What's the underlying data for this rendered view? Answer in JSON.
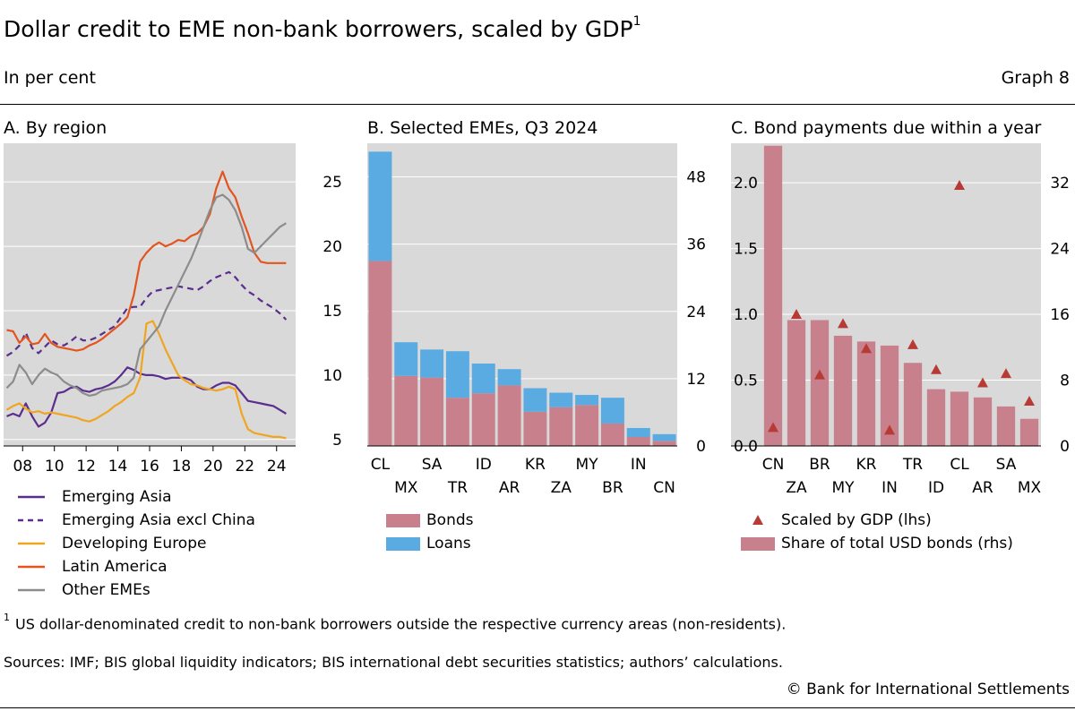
{
  "header": {
    "title": "Dollar credit to EME non-bank borrowers, scaled by GDP",
    "title_sup": "1",
    "subtitle": "In per cent",
    "graph_number": "Graph 8"
  },
  "chart_data": [
    {
      "type": "line",
      "title": "A. By region",
      "x_tick_labels": [
        "08",
        "10",
        "12",
        "14",
        "16",
        "18",
        "20",
        "22",
        "24"
      ],
      "x_tick_values": [
        2008,
        2010,
        2012,
        2014,
        2016,
        2018,
        2020,
        2022,
        2024
      ],
      "xlim": [
        2006.8,
        2025.2
      ],
      "ylim": [
        4.5,
        28
      ],
      "y_ticks": [
        5,
        10,
        15,
        20,
        25
      ],
      "y_axis_side": "right",
      "grid": true,
      "legend_position": "below",
      "series": [
        {
          "name": "Emerging Asia",
          "color": "#5b2d8e",
          "dash": false,
          "x": [
            2007.0,
            2007.4,
            2007.8,
            2008.2,
            2008.6,
            2009.0,
            2009.4,
            2009.8,
            2010.2,
            2010.6,
            2011.0,
            2011.4,
            2011.8,
            2012.2,
            2012.6,
            2013.0,
            2013.4,
            2013.8,
            2014.2,
            2014.6,
            2015.0,
            2015.4,
            2015.8,
            2016.2,
            2016.6,
            2017.0,
            2017.4,
            2017.8,
            2018.2,
            2018.6,
            2019.0,
            2019.4,
            2019.8,
            2020.2,
            2020.6,
            2021.0,
            2021.4,
            2021.8,
            2022.2,
            2022.6,
            2023.0,
            2023.4,
            2023.8,
            2024.2,
            2024.6
          ],
          "y": [
            6.8,
            7.0,
            6.8,
            7.8,
            6.8,
            6.0,
            6.3,
            7.1,
            8.6,
            8.7,
            9.0,
            9.1,
            8.8,
            8.7,
            8.9,
            9.0,
            9.2,
            9.5,
            10.0,
            10.6,
            10.4,
            10.1,
            10.0,
            10.0,
            9.9,
            9.7,
            9.8,
            9.8,
            9.8,
            9.6,
            9.1,
            8.9,
            8.9,
            9.2,
            9.4,
            9.4,
            9.2,
            8.6,
            8.0,
            7.9,
            7.8,
            7.7,
            7.6,
            7.3,
            7.0
          ]
        },
        {
          "name": "Emerging Asia excl China",
          "color": "#5b2d8e",
          "dash": true,
          "x": [
            2007.0,
            2007.4,
            2007.8,
            2008.2,
            2008.6,
            2009.0,
            2009.4,
            2009.8,
            2010.2,
            2010.6,
            2011.0,
            2011.4,
            2011.8,
            2012.2,
            2012.6,
            2013.0,
            2013.4,
            2013.8,
            2014.2,
            2014.6,
            2015.0,
            2015.4,
            2015.8,
            2016.2,
            2016.6,
            2017.0,
            2017.4,
            2017.8,
            2018.2,
            2018.6,
            2019.0,
            2019.4,
            2019.8,
            2020.2,
            2020.6,
            2021.0,
            2021.4,
            2021.8,
            2022.2,
            2022.6,
            2023.0,
            2023.4,
            2023.8,
            2024.2,
            2024.6
          ],
          "y": [
            11.5,
            11.8,
            12.3,
            13.3,
            12.1,
            11.7,
            12.2,
            12.7,
            12.4,
            12.3,
            12.6,
            13.0,
            12.7,
            12.7,
            12.9,
            13.2,
            13.5,
            13.8,
            14.5,
            15.2,
            15.3,
            15.3,
            16.0,
            16.5,
            16.6,
            16.7,
            16.8,
            16.9,
            16.8,
            16.7,
            16.6,
            16.9,
            17.3,
            17.6,
            17.8,
            18.0,
            17.6,
            17.0,
            16.5,
            16.2,
            15.8,
            15.5,
            15.2,
            14.8,
            14.3
          ]
        },
        {
          "name": "Developing Europe",
          "color": "#f0a51f",
          "dash": false,
          "x": [
            2007.0,
            2007.4,
            2007.8,
            2008.2,
            2008.6,
            2009.0,
            2009.4,
            2009.8,
            2010.2,
            2010.6,
            2011.0,
            2011.4,
            2011.8,
            2012.2,
            2012.6,
            2013.0,
            2013.4,
            2013.8,
            2014.2,
            2014.6,
            2015.0,
            2015.4,
            2015.8,
            2016.2,
            2016.6,
            2017.0,
            2017.4,
            2017.8,
            2018.2,
            2018.6,
            2019.0,
            2019.4,
            2019.8,
            2020.2,
            2020.6,
            2021.0,
            2021.4,
            2021.8,
            2022.2,
            2022.6,
            2023.0,
            2023.4,
            2023.8,
            2024.2,
            2024.6
          ],
          "y": [
            7.3,
            7.6,
            7.8,
            7.4,
            7.1,
            7.2,
            7.0,
            7.1,
            7.0,
            6.9,
            6.8,
            6.7,
            6.5,
            6.4,
            6.6,
            6.9,
            7.2,
            7.6,
            7.9,
            8.3,
            8.6,
            9.8,
            14.0,
            14.2,
            13.2,
            12.0,
            11.0,
            10.0,
            9.6,
            9.3,
            9.2,
            9.0,
            8.9,
            8.8,
            8.9,
            9.1,
            8.9,
            7.0,
            5.8,
            5.5,
            5.4,
            5.3,
            5.2,
            5.2,
            5.1
          ]
        },
        {
          "name": "Latin America",
          "color": "#e3541e",
          "dash": false,
          "x": [
            2007.0,
            2007.4,
            2007.8,
            2008.2,
            2008.6,
            2009.0,
            2009.4,
            2009.8,
            2010.2,
            2010.6,
            2011.0,
            2011.4,
            2011.8,
            2012.2,
            2012.6,
            2013.0,
            2013.4,
            2013.8,
            2014.2,
            2014.6,
            2015.0,
            2015.4,
            2015.8,
            2016.2,
            2016.6,
            2017.0,
            2017.4,
            2017.8,
            2018.2,
            2018.6,
            2019.0,
            2019.4,
            2019.8,
            2020.2,
            2020.6,
            2021.0,
            2021.4,
            2021.8,
            2022.2,
            2022.6,
            2023.0,
            2023.4,
            2023.8,
            2024.2,
            2024.6
          ],
          "y": [
            13.5,
            13.4,
            12.5,
            13.0,
            12.4,
            12.5,
            13.2,
            12.5,
            12.2,
            12.1,
            12.0,
            11.9,
            12.0,
            12.3,
            12.5,
            12.8,
            13.2,
            13.6,
            14.0,
            14.5,
            16.2,
            18.8,
            19.5,
            20.0,
            20.3,
            20.0,
            20.2,
            20.5,
            20.4,
            20.8,
            21.0,
            21.5,
            22.5,
            24.5,
            25.8,
            24.5,
            23.8,
            22.3,
            21.0,
            19.5,
            18.8,
            18.7,
            18.7,
            18.7,
            18.7
          ]
        },
        {
          "name": "Other EMEs",
          "color": "#8c8c8c",
          "dash": false,
          "x": [
            2007.0,
            2007.4,
            2007.8,
            2008.2,
            2008.6,
            2009.0,
            2009.4,
            2009.8,
            2010.2,
            2010.6,
            2011.0,
            2011.4,
            2011.8,
            2012.2,
            2012.6,
            2013.0,
            2013.4,
            2013.8,
            2014.2,
            2014.6,
            2015.0,
            2015.4,
            2015.8,
            2016.2,
            2016.6,
            2017.0,
            2017.4,
            2017.8,
            2018.2,
            2018.6,
            2019.0,
            2019.4,
            2019.8,
            2020.2,
            2020.6,
            2021.0,
            2021.4,
            2021.8,
            2022.2,
            2022.6,
            2023.0,
            2023.4,
            2023.8,
            2024.2,
            2024.6
          ],
          "y": [
            9.0,
            9.5,
            10.8,
            10.2,
            9.3,
            10.0,
            10.5,
            10.2,
            10.0,
            9.5,
            9.2,
            9.0,
            8.6,
            8.4,
            8.5,
            8.8,
            8.9,
            9.0,
            9.1,
            9.3,
            9.8,
            12.0,
            12.6,
            13.2,
            13.8,
            15.0,
            16.0,
            17.0,
            18.0,
            19.0,
            20.2,
            21.5,
            22.8,
            23.8,
            24.0,
            23.6,
            22.8,
            21.5,
            19.8,
            19.5,
            20.0,
            20.5,
            21.0,
            21.5,
            21.8
          ]
        }
      ]
    },
    {
      "type": "bar",
      "stacked": true,
      "title": "B. Selected EMEs, Q3 2024",
      "categories": [
        "CL",
        "MX",
        "SA",
        "TR",
        "ID",
        "AR",
        "KR",
        "ZA",
        "MY",
        "BR",
        "IN",
        "CN"
      ],
      "ylim": [
        0,
        54
      ],
      "y_ticks": [
        0,
        12,
        24,
        36,
        48
      ],
      "y_axis_side": "right",
      "grid": true,
      "legend_position": "below",
      "series": [
        {
          "name": "Bonds",
          "color": "#c8808c",
          "values": [
            33,
            12.5,
            12.2,
            8.6,
            9.4,
            10.8,
            6.1,
            6.9,
            7.3,
            4.0,
            1.6,
            0.9
          ]
        },
        {
          "name": "Loans",
          "color": "#5aabe1",
          "values": [
            19.5,
            6.0,
            5.0,
            8.3,
            5.3,
            2.9,
            4.2,
            2.6,
            1.8,
            4.6,
            1.6,
            1.2
          ]
        }
      ]
    },
    {
      "type": "bar",
      "title": "C. Bond payments due within a year",
      "categories": [
        "CN",
        "ZA",
        "BR",
        "MY",
        "KR",
        "IN",
        "TR",
        "ID",
        "CL",
        "AR",
        "SA",
        "MX"
      ],
      "ylim_left": [
        0,
        2.3
      ],
      "ylim_right": [
        0,
        36.8
      ],
      "y_ticks_left": [
        "0.0",
        "0.5",
        "1.0",
        "1.5",
        "2.0"
      ],
      "y_ticks_right": [
        0,
        8,
        16,
        24,
        32
      ],
      "grid": true,
      "legend_position": "below",
      "series": [
        {
          "name": "Share of total USD bonds (rhs)",
          "type": "bar",
          "axis": "right",
          "color": "#c8808c",
          "values": [
            36.5,
            15.3,
            15.3,
            13.4,
            12.7,
            12.2,
            10.1,
            6.9,
            6.6,
            5.9,
            4.8,
            3.3
          ]
        },
        {
          "name": "Scaled by GDP (lhs)",
          "type": "marker",
          "axis": "left",
          "color": "#b83a35",
          "values": [
            0.14,
            1.0,
            0.54,
            0.93,
            0.74,
            0.12,
            0.77,
            0.58,
            1.98,
            0.48,
            0.55,
            0.34
          ]
        }
      ]
    }
  ],
  "footer": {
    "footnote_mark": "1",
    "footnote": "US dollar-denominated credit to non-bank borrowers outside the respective currency areas (non-residents).",
    "sources": "Sources: IMF; BIS global liquidity indicators; BIS international debt securities statistics; authors’ calculations.",
    "copyright": "© Bank for International Settlements"
  }
}
